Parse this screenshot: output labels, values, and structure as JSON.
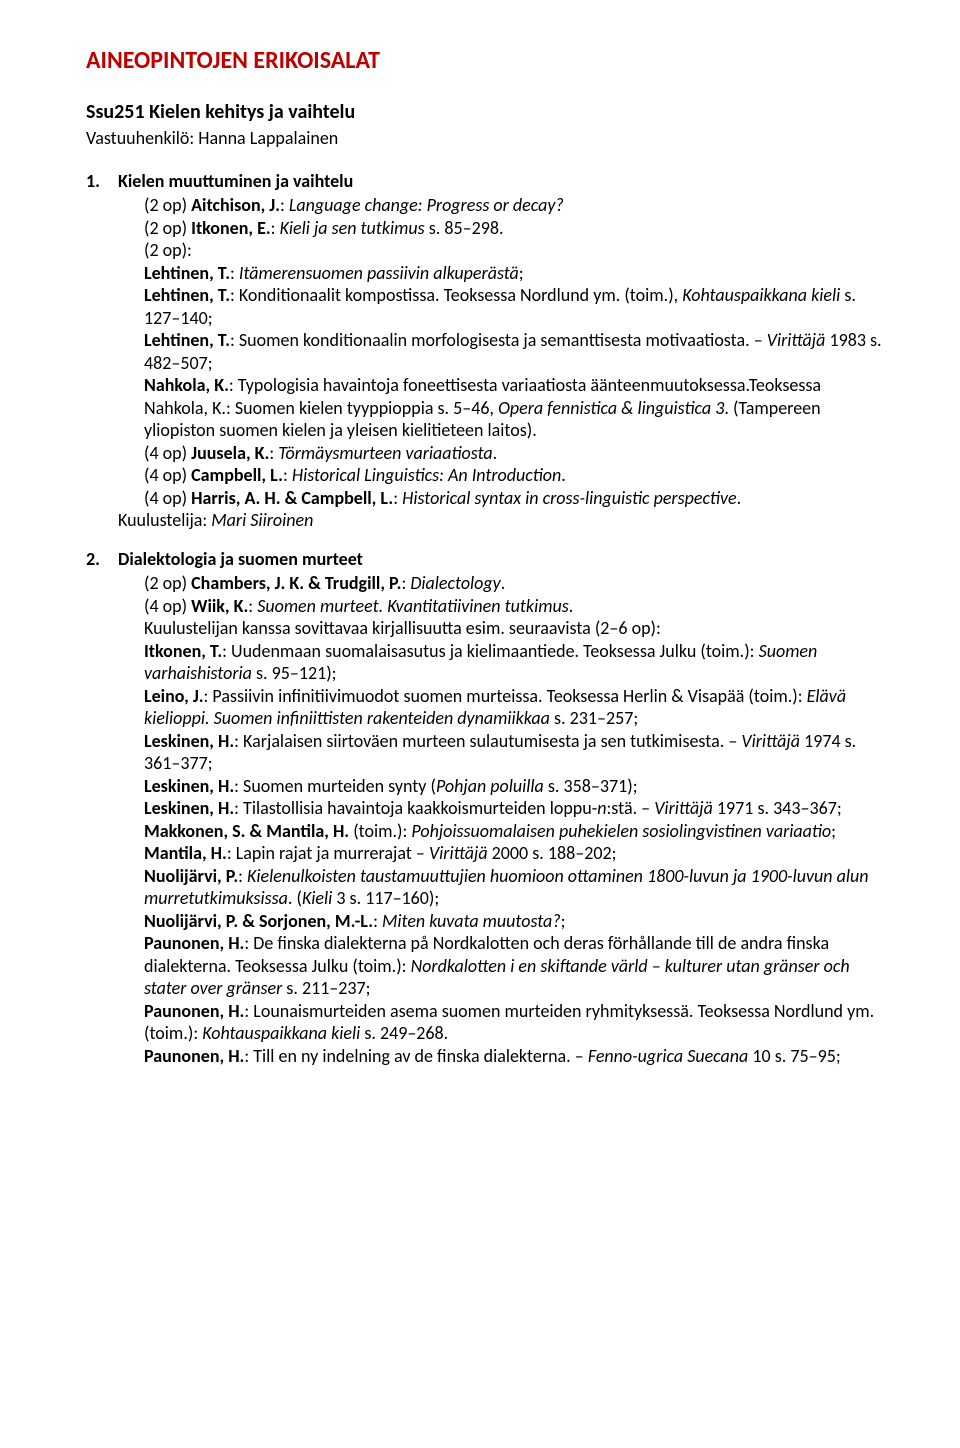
{
  "colors": {
    "heading": "#c00000",
    "text": "#000000",
    "background": "#ffffff"
  },
  "typography": {
    "font_family": "Calibri",
    "heading_size_pt": 18,
    "course_title_size_pt": 15,
    "body_size_pt": 13.5
  },
  "main_heading_leading": "A",
  "main_heading_rest": "INEOPINTOJEN ERIKOISALAT",
  "course_title": "Ssu251 Kielen kehitys ja vaihtelu",
  "responsible": "Vastuuhenkilö: Hanna Lappalainen",
  "s1_num": "1.",
  "s1_title": "Kielen muuttuminen ja vaihtelu",
  "s1_l1_a": "(2 op) ",
  "s1_l1_b": "Aitchison, J.",
  "s1_l1_c": ": ",
  "s1_l1_d": "Language change: Progress or decay?",
  "s1_l2_a": "(2 op) ",
  "s1_l2_b": "Itkonen, E.",
  "s1_l2_c": ": ",
  "s1_l2_d": "Kieli ja sen tutkimus",
  "s1_l2_e": " s. 85–298.",
  "s1_l3": "(2 op):",
  "s1_l4_a": "Lehtinen, T.",
  "s1_l4_b": ": ",
  "s1_l4_c": "Itämerensuomen passiivin alkuperästä",
  "s1_l4_d": ";",
  "s1_l5_a": "Lehtinen, T.",
  "s1_l5_b": ": Konditionaalit kompostissa. Teoksessa Nordlund ym. (toim.), ",
  "s1_l5_c": "Kohtauspaikkana kieli",
  "s1_l5_d": " s. 127–140;",
  "s1_l6_a": "Lehtinen, T.",
  "s1_l6_b": ": Suomen konditionaalin morfologisesta ja semanttisesta motivaatiosta. – ",
  "s1_l6_c": "Virittäjä",
  "s1_l6_d": " 1983 s. 482–507;",
  "s1_l7_a": "Nahkola, K.",
  "s1_l7_b": ": Typologisia havaintoja foneettisesta variaatiosta äänteenmuutoksessa.Teoksessa Nahkola, K.: Suomen kielen tyyppioppia s. 5–46, ",
  "s1_l7_c": "Opera fennistica & linguistica 3",
  "s1_l7_d": ". (Tampereen yliopiston suomen kielen ja yleisen kielitieteen laitos).",
  "s1_l8_a": "(4 op) ",
  "s1_l8_b": "Juusela, K.",
  "s1_l8_c": ": ",
  "s1_l8_d": "Törmäysmurteen variaatiosta",
  "s1_l8_e": ".",
  "s1_l9_a": "(4 op) ",
  "s1_l9_b": "Campbell, L.",
  "s1_l9_c": ": ",
  "s1_l9_d": "Historical Linguistics: An Introduction",
  "s1_l9_e": ".",
  "s1_l10_a": "(4 op) ",
  "s1_l10_b": "Harris, A. H. & Campbell, L.",
  "s1_l10_c": ": ",
  "s1_l10_d": "Historical syntax in cross-linguistic perspective",
  "s1_l10_e": ".",
  "s1_examiner_a": "Kuulustelija: ",
  "s1_examiner_b": "Mari Siiroinen",
  "s2_num": "2.",
  "s2_title": "Dialektologia ja suomen murteet",
  "s2_l1_a": "(2 op) ",
  "s2_l1_b": "Chambers, J. K. & Trudgill, P.",
  "s2_l1_c": ": ",
  "s2_l1_d": "Dialectology",
  "s2_l1_e": ".",
  "s2_l2_a": "(4 op) ",
  "s2_l2_b": "Wiik, K.",
  "s2_l2_c": ": ",
  "s2_l2_d": "Suomen murteet. Kvantitatiivinen tutkimus",
  "s2_l2_e": ".",
  "s2_l3": "Kuulustelijan kanssa sovittavaa kirjallisuutta esim. seuraavista (2–6 op):",
  "s2_l4_a": "Itkonen, T.",
  "s2_l4_b": ": Uudenmaan suomalaisasutus ja kielimaantiede. Teoksessa Julku (toim.): ",
  "s2_l4_c": "Suomen varhaishistoria",
  "s2_l4_d": " s. 95–121);",
  "s2_l5_a": "Leino, J.",
  "s2_l5_b": ": Passiivin infinitiivimuodot suomen murteissa. Teoksessa Herlin & Visapää (toim.): ",
  "s2_l5_c": "Elävä kielioppi. Suomen infiniittisten rakenteiden dynamiikkaa",
  "s2_l5_d": " s. 231–257;",
  "s2_l6_a": "Leskinen, H.",
  "s2_l6_b": ": Karjalaisen siirtoväen murteen sulautumisesta ja sen tutkimisesta. – ",
  "s2_l6_c": "Virittäjä",
  "s2_l6_d": " 1974 s. 361–377;",
  "s2_l7_a": "Leskinen, H.",
  "s2_l7_b": ": Suomen murteiden synty (",
  "s2_l7_c": "Pohjan poluilla",
  "s2_l7_d": " s. 358–371);",
  "s2_l8_a": "Leskinen, H.",
  "s2_l8_b": ": Tilastollisia havaintoja kaakkoismurteiden loppu-",
  "s2_l8_c": "n",
  "s2_l8_d": ":stä. – ",
  "s2_l8_e": "Virittäjä",
  "s2_l8_f": " 1971 s. 343–367;",
  "s2_l9_a": "Makkonen, S. & Mantila, H.",
  "s2_l9_b": " (toim.): ",
  "s2_l9_c": "Pohjoissuomalaisen puhekielen sosiolingvistinen variaatio",
  "s2_l9_d": ";",
  "s2_l10_a": "Mantila, H.",
  "s2_l10_b": ": Lapin rajat ja murrerajat – ",
  "s2_l10_c": "Virittäjä",
  "s2_l10_d": " 2000 s. 188–202;",
  "s2_l11_a": "Nuolijärvi, P.",
  "s2_l11_b": ": ",
  "s2_l11_c": "Kielenulkoisten taustamuuttujien huomioon ottaminen 1800-luvun ja 1900-luvun alun murretutkimuksissa",
  "s2_l11_d": ". (",
  "s2_l11_e": "Kieli",
  "s2_l11_f": " 3 s. 117–160);",
  "s2_l12_a": "Nuolijärvi, P. & Sorjonen, M.-L.",
  "s2_l12_b": ": ",
  "s2_l12_c": "Miten kuvata muutosta?",
  "s2_l12_d": ";",
  "s2_l13_a": "Paunonen, H.",
  "s2_l13_b": ": De finska dialekterna på Nordkalotten och deras förhållande till de andra finska dialekterna. Teoksessa Julku (toim.): ",
  "s2_l13_c": "Nordkalotten i en skiftande värld – kulturer utan gränser och stater over gränser",
  "s2_l13_d": " s. 211–237;",
  "s2_l14_a": "Paunonen, H.",
  "s2_l14_b": ": Lounaismurteiden asema suomen murteiden ryhmityksessä. Teoksessa Nordlund ym. (toim.): ",
  "s2_l14_c": "Kohtauspaikkana kieli",
  "s2_l14_d": " s. 249–268.",
  "s2_l15_a": "Paunonen, H.",
  "s2_l15_b": ": Till en ny indelning av de finska dialekterna. – ",
  "s2_l15_c": "Fenno-ugrica Suecana",
  "s2_l15_d": " 10 s. 75–95;"
}
